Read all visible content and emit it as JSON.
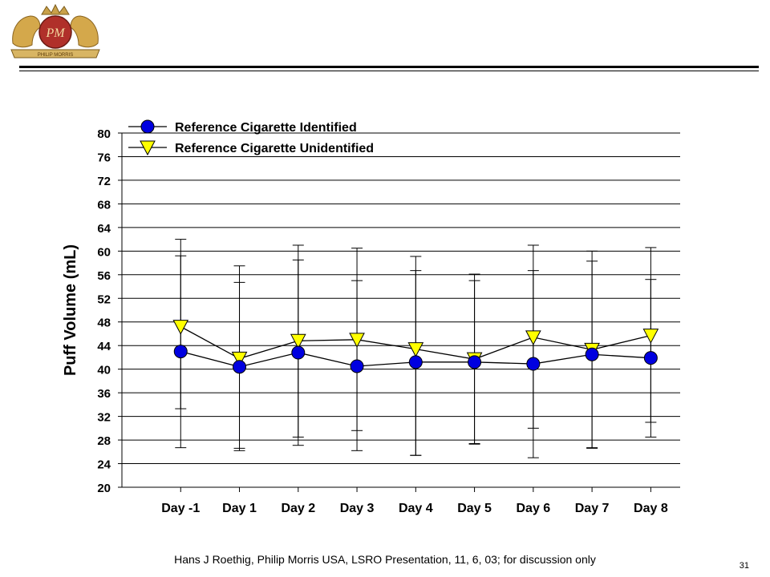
{
  "logo": {
    "text": "PHILIP MORRIS",
    "monogram": "PM",
    "icon": "philip-morris-crest-icon"
  },
  "footer": {
    "text": "Hans J Roethig, Philip Morris USA, LSRO Presentation, 11, 6, 03; for discussion only"
  },
  "page_number": "31",
  "chart_data": {
    "type": "line",
    "title": "",
    "xlabel": "",
    "ylabel": "Puff Volume (mL)",
    "categories": [
      "Day -1",
      "Day 1",
      "Day 2",
      "Day 3",
      "Day 4",
      "Day 5",
      "Day 6",
      "Day 7",
      "Day 8"
    ],
    "ylim": [
      20,
      80
    ],
    "yticks": [
      20,
      24,
      28,
      32,
      36,
      40,
      44,
      48,
      52,
      56,
      60,
      64,
      68,
      72,
      76,
      80
    ],
    "grid": "horizontal",
    "legend": "top-left",
    "series": [
      {
        "name": "Reference Cigarette Identified",
        "marker": "circle",
        "color": "#0000e0",
        "values": [
          43.0,
          40.4,
          42.8,
          40.5,
          41.2,
          41.2,
          40.9,
          42.5,
          41.9
        ],
        "error_low": [
          26.7,
          26.2,
          27.1,
          26.2,
          25.4,
          27.4,
          25.0,
          26.7,
          28.5
        ],
        "error_high": [
          59.2,
          54.7,
          58.5,
          55.0,
          56.7,
          55.0,
          56.7,
          58.3,
          55.2
        ]
      },
      {
        "name": "Reference Cigarette Unidentified",
        "marker": "triangle-down",
        "color": "#ffff00",
        "values": [
          47.2,
          41.8,
          44.8,
          45.0,
          43.4,
          41.7,
          45.4,
          43.3,
          45.7
        ],
        "error_low": [
          33.3,
          26.6,
          28.5,
          29.6,
          25.4,
          27.3,
          30.0,
          26.6,
          31.0
        ],
        "error_high": [
          62.0,
          57.5,
          61.0,
          60.5,
          59.1,
          56.1,
          61.0,
          60.0,
          60.6
        ]
      }
    ]
  }
}
